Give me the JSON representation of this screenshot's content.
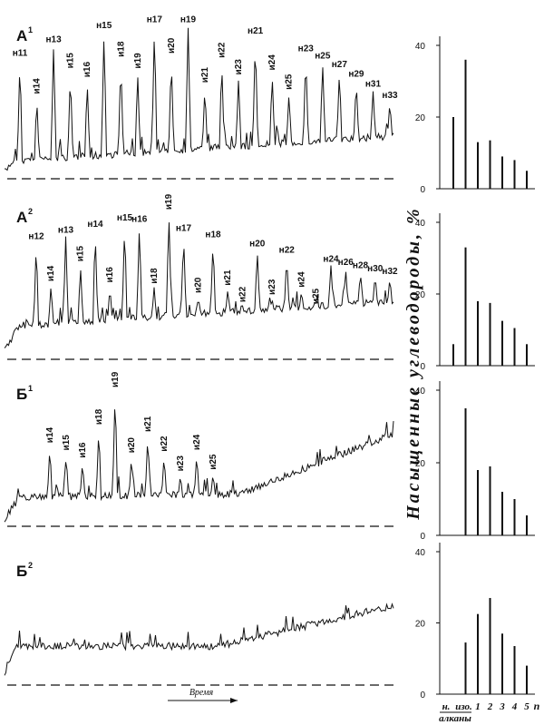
{
  "chromatograms": [
    {
      "label": "А",
      "superscript": "1",
      "peaks": [
        "н11",
        "и14",
        "н13",
        "и15",
        "и16",
        "н15",
        "и18",
        "и19",
        "н17",
        "и20",
        "н19",
        "и21",
        "и22",
        "и23",
        "н21",
        "и24",
        "и25",
        "н23",
        "н25",
        "н27",
        "н29",
        "н31",
        "н33"
      ]
    },
    {
      "label": "А",
      "superscript": "2",
      "peaks": [
        "н12",
        "и14",
        "н13",
        "и15",
        "н14",
        "и16",
        "н15",
        "н16",
        "и18",
        "и19",
        "н17",
        "и20",
        "н18",
        "и21",
        "и22",
        "н20",
        "и23",
        "н22",
        "и24",
        "и25",
        "н24",
        "н26",
        "н28",
        "н30",
        "н32"
      ]
    },
    {
      "label": "Б",
      "superscript": "1",
      "peaks": [
        "и14",
        "и15",
        "и16",
        "и18",
        "и19",
        "и20",
        "и21",
        "и22",
        "и23",
        "и24",
        "и25"
      ]
    },
    {
      "label": "Б",
      "superscript": "2",
      "peaks": []
    }
  ],
  "time_label": "Время",
  "y_axis_label": "Насыщенные углеводороды, %",
  "categories": [
    "н.",
    "изо.",
    "1",
    "2",
    "3",
    "4",
    "5"
  ],
  "x_axis_label": "n",
  "group_label": "алканы",
  "chart_data": [
    {
      "type": "bar",
      "values": [
        20,
        36,
        13,
        13.5,
        9,
        8,
        5
      ],
      "color": "#111111",
      "ylim": [
        0,
        40
      ],
      "yticks": [
        0,
        20,
        40
      ]
    },
    {
      "type": "bar",
      "values": [
        6,
        33,
        18,
        17.5,
        12.5,
        10.5,
        6
      ],
      "color": "#111111",
      "ylim": [
        0,
        40
      ],
      "yticks": [
        0,
        20,
        40
      ]
    },
    {
      "type": "bar",
      "values": [
        null,
        35,
        18,
        19,
        12,
        10,
        5.5
      ],
      "color": "#111111",
      "ylim": [
        0,
        40
      ],
      "yticks": [
        0,
        20,
        40
      ]
    },
    {
      "type": "bar",
      "values": [
        null,
        14.5,
        22.5,
        27,
        17,
        13.5,
        8
      ],
      "color": "#111111",
      "ylim": [
        0,
        40
      ],
      "yticks": [
        0,
        20,
        40
      ]
    }
  ]
}
